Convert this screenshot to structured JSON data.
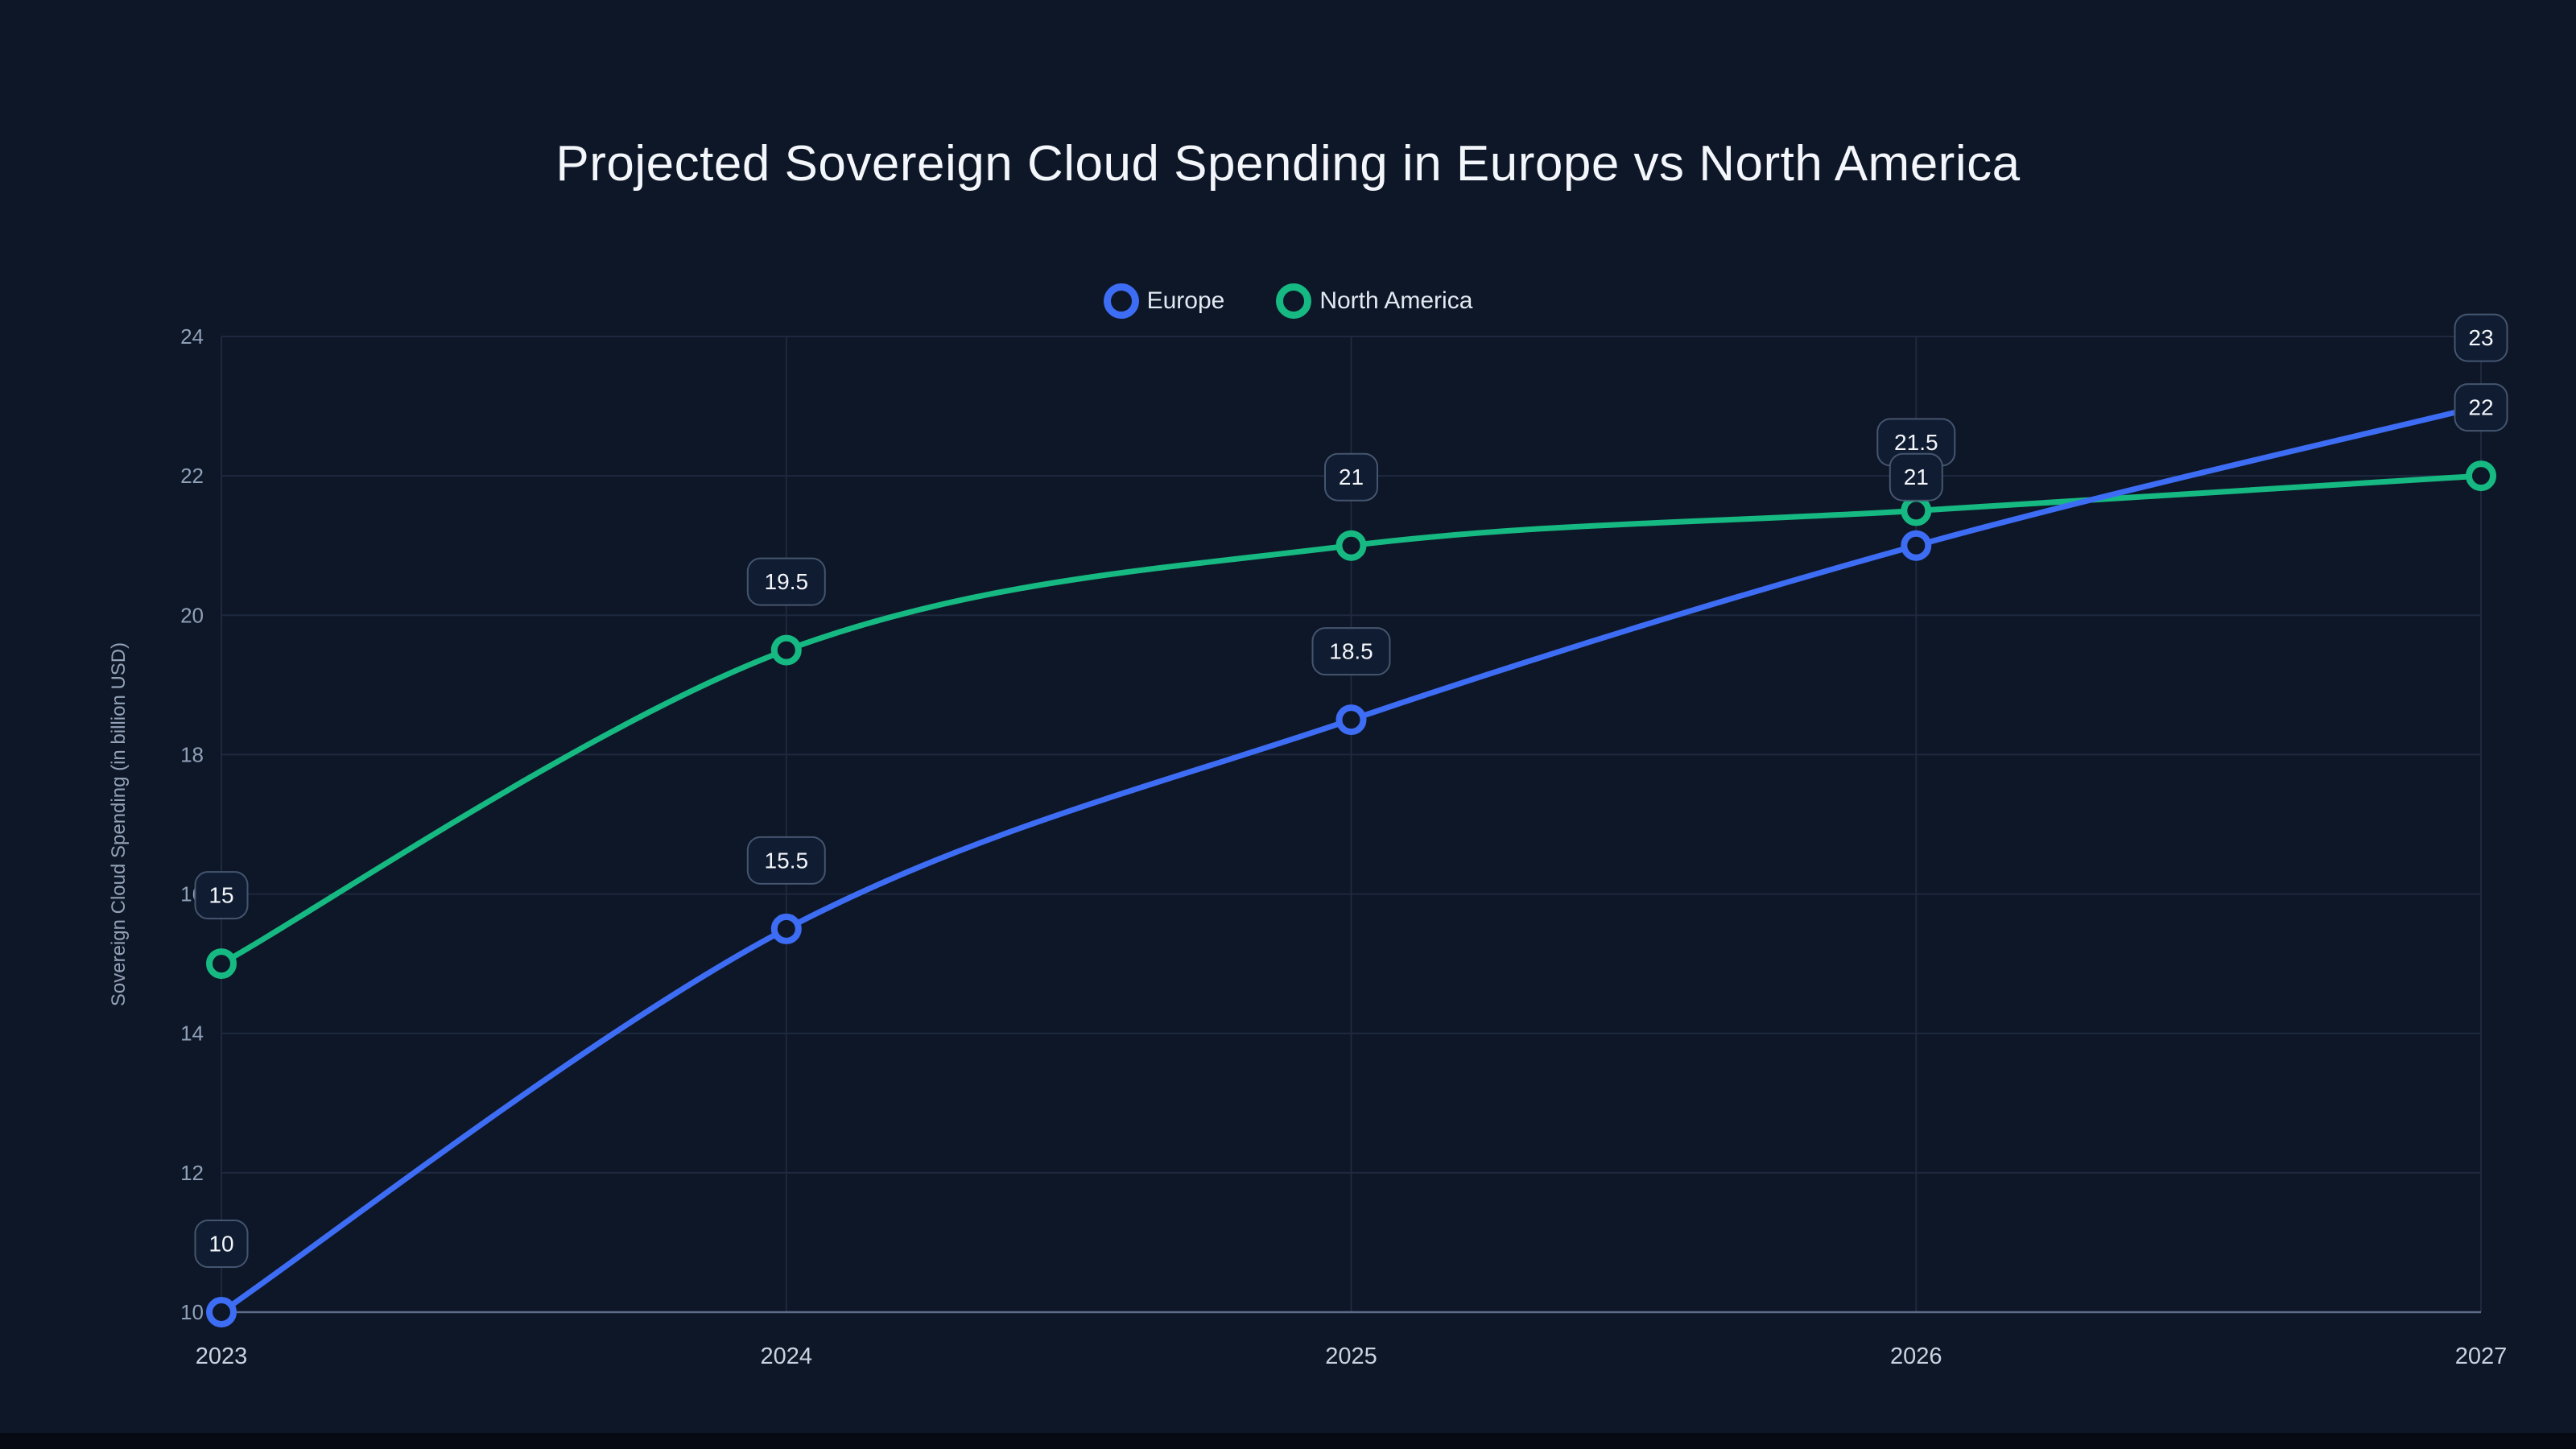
{
  "chart_data": {
    "type": "line",
    "title": "Projected Sovereign Cloud Spending in Europe vs North America",
    "xlabel": "",
    "ylabel": "Sovereign Cloud Spending (in billion USD)",
    "categories": [
      "2023",
      "2024",
      "2025",
      "2026",
      "2027"
    ],
    "series": [
      {
        "name": "Europe",
        "color": "#3e6df5",
        "values": [
          10,
          15.5,
          18.5,
          21,
          23
        ]
      },
      {
        "name": "North America",
        "color": "#16b981",
        "values": [
          15,
          19.5,
          21,
          21.5,
          22
        ]
      }
    ],
    "ylim": [
      10,
      24
    ],
    "yticks": [
      10,
      12,
      14,
      16,
      18,
      20,
      22,
      24
    ],
    "grid": true,
    "legend_position": "top",
    "data_labels": true
  },
  "theme": {
    "background": "#0e1728",
    "grid": "#1e293f",
    "axis_line": "#5d6c88",
    "text_primary": "#f3f6fa",
    "tick_muted": "#8fa0b8",
    "tick_x": "#c9d3e0",
    "label_pill_bg": "#101c31",
    "label_pill_border": "#44556f",
    "label_pill_text": "#f3f6fa"
  }
}
